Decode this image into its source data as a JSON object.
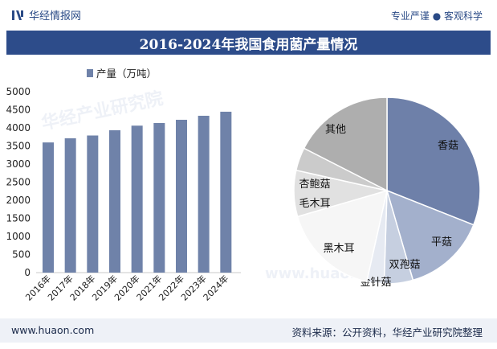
{
  "header": {
    "logo_text": "华经情报网",
    "tagline": "专业严谨 ● 客观科学"
  },
  "title": "2016-2024年我国食用菌产量情况",
  "footer": {
    "url": "www.huaon.com",
    "source": "资料来源：公开资料，华经产业研究院整理"
  },
  "watermark": {
    "text": "华经产业研究院",
    "sub": "www.huaon.com"
  },
  "colors": {
    "brand": "#2d4c8a",
    "bar": "#6f82a9",
    "footer_bg": "#eef1f7"
  },
  "chart_data": [
    {
      "type": "bar",
      "legend": "产量（万吨）",
      "categories": [
        "2016年",
        "2017年",
        "2018年",
        "2019年",
        "2020年",
        "2021年",
        "2022年",
        "2023年",
        "2024年"
      ],
      "values": [
        3597,
        3712,
        3789,
        3934,
        4061,
        4134,
        4223,
        4334,
        4446
      ],
      "yticks": [
        0,
        500,
        1000,
        1500,
        2000,
        2500,
        3000,
        3500,
        4000,
        4500,
        5000
      ],
      "ylim": [
        0,
        5000
      ]
    },
    {
      "type": "pie",
      "slices": [
        {
          "label": "香菇",
          "value": 31,
          "color": "#6e80a9"
        },
        {
          "label": "平菇",
          "value": 14.5,
          "color": "#a3b0cc"
        },
        {
          "label": "双孢菇",
          "value": 5,
          "color": "#c6cfe0"
        },
        {
          "label": "金针菇",
          "value": 3,
          "color": "#e6eaf2"
        },
        {
          "label": "黑木耳",
          "value": 17,
          "color": "#f6f6f6"
        },
        {
          "label": "毛木耳",
          "value": 8,
          "color": "#e1e1e1"
        },
        {
          "label": "杏鲍菇",
          "value": 4,
          "color": "#cbcbcb"
        },
        {
          "label": "其他",
          "value": 17.5,
          "color": "#aeaeae"
        }
      ]
    }
  ]
}
